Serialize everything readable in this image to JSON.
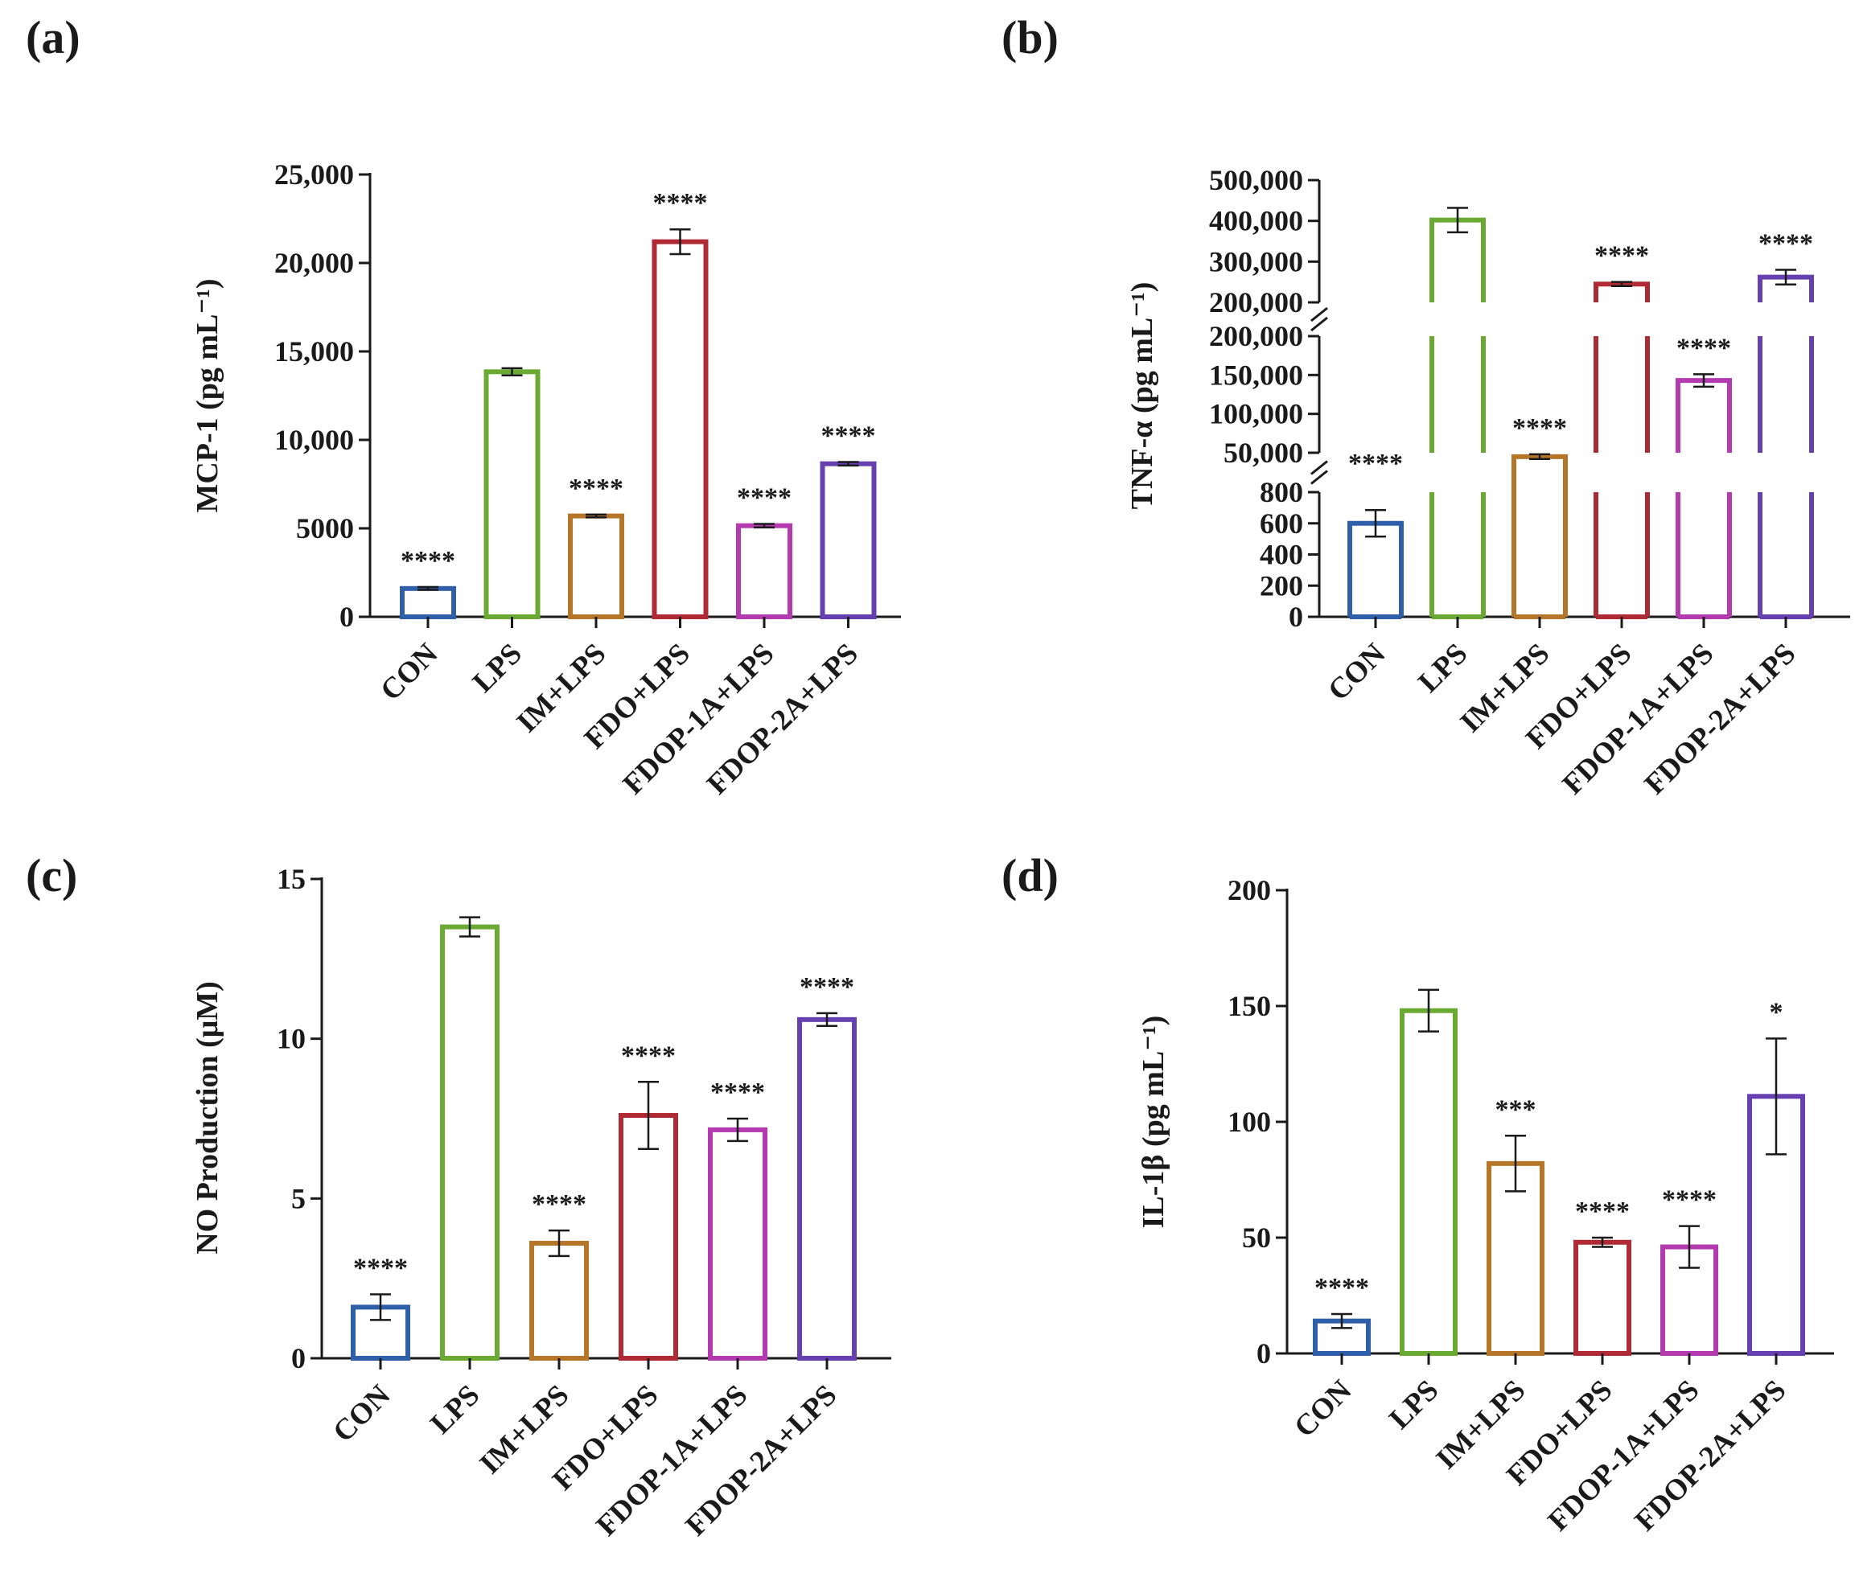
{
  "figure": {
    "panels": [
      {
        "id": "a",
        "label": "(a)"
      },
      {
        "id": "b",
        "label": "(b)"
      },
      {
        "id": "c",
        "label": "(c)"
      },
      {
        "id": "d",
        "label": "(d)"
      }
    ]
  },
  "chart_data": [
    {
      "panel": "(a)",
      "type": "bar",
      "title": "",
      "xlabel": "",
      "ylabel": "MCP-1 (pg mL⁻¹)",
      "ylim": [
        0,
        25000
      ],
      "yticks": [
        0,
        5000,
        10000,
        15000,
        20000,
        25000
      ],
      "ytick_labels": [
        "0",
        "5000",
        "10,000",
        "15,000",
        "20,000",
        "25,000"
      ],
      "categories": [
        "CON",
        "LPS",
        "IM+LPS",
        "FDO+LPS",
        "FDOP-1A+LPS",
        "FDOP-2A+LPS"
      ],
      "values": [
        1600,
        13850,
        5700,
        21200,
        5150,
        8650
      ],
      "errors": [
        80,
        200,
        80,
        700,
        100,
        100
      ],
      "significance": [
        "****",
        "",
        "****",
        "****",
        "****",
        "****"
      ],
      "colors": [
        "#2f5fa8",
        "#6aaa32",
        "#b5762a",
        "#b02a35",
        "#b43ab0",
        "#6640b0"
      ],
      "grid": false,
      "legend": "none"
    },
    {
      "panel": "(b)",
      "type": "bar",
      "title": "",
      "xlabel": "",
      "ylabel": "TNF-α (pg mL⁻¹)",
      "y_axis": "broken into three segments",
      "y_segments": [
        {
          "range": [
            0,
            800
          ],
          "ticks": [
            0,
            200,
            400,
            600,
            800
          ],
          "tick_labels": [
            "0",
            "200",
            "400",
            "600",
            "800"
          ]
        },
        {
          "range": [
            50000,
            200000
          ],
          "ticks": [
            50000,
            100000,
            150000,
            200000
          ],
          "tick_labels": [
            "50,000",
            "100,000",
            "150,000",
            "200,000"
          ]
        },
        {
          "range": [
            200000,
            500000
          ],
          "ticks": [
            200000,
            300000,
            400000,
            500000
          ],
          "tick_labels": [
            "200,000",
            "300,000",
            "400,000",
            "500,000"
          ]
        }
      ],
      "categories": [
        "CON",
        "LPS",
        "IM+LPS",
        "FDO+LPS",
        "FDOP-1A+LPS",
        "FDOP-2A+LPS"
      ],
      "values": [
        600,
        402000,
        45000,
        245000,
        143000,
        262000
      ],
      "errors": [
        85,
        30000,
        3000,
        5000,
        8000,
        18000
      ],
      "significance": [
        "****",
        "",
        "****",
        "****",
        "****",
        "****"
      ],
      "colors": [
        "#2f5fa8",
        "#6aaa32",
        "#b5762a",
        "#b02a35",
        "#b43ab0",
        "#6640b0"
      ],
      "grid": false,
      "legend": "none"
    },
    {
      "panel": "(c)",
      "type": "bar",
      "title": "",
      "xlabel": "",
      "ylabel": "NO Production (μM)",
      "ylim": [
        0,
        15
      ],
      "yticks": [
        0,
        5,
        10,
        15
      ],
      "ytick_labels": [
        "0",
        "5",
        "10",
        "15"
      ],
      "categories": [
        "CON",
        "LPS",
        "IM+LPS",
        "FDO+LPS",
        "FDOP-1A+LPS",
        "FDOP-2A+LPS"
      ],
      "values": [
        1.6,
        13.5,
        3.6,
        7.6,
        7.15,
        10.6
      ],
      "errors": [
        0.4,
        0.3,
        0.4,
        1.05,
        0.35,
        0.2
      ],
      "significance": [
        "****",
        "",
        "****",
        "****",
        "****",
        "****"
      ],
      "colors": [
        "#2f5fa8",
        "#6aaa32",
        "#b5762a",
        "#b02a35",
        "#b43ab0",
        "#6640b0"
      ],
      "grid": false,
      "legend": "none"
    },
    {
      "panel": "(d)",
      "type": "bar",
      "title": "",
      "xlabel": "",
      "ylabel": "IL-1β (pg mL⁻¹)",
      "ylim": [
        0,
        200
      ],
      "yticks": [
        0,
        50,
        100,
        150,
        200
      ],
      "ytick_labels": [
        "0",
        "50",
        "100",
        "150",
        "200"
      ],
      "categories": [
        "CON",
        "LPS",
        "IM+LPS",
        "FDO+LPS",
        "FDOP-1A+LPS",
        "FDOP-2A+LPS"
      ],
      "values": [
        14,
        148,
        82,
        48,
        46,
        111
      ],
      "errors": [
        3,
        9,
        12,
        2,
        9,
        25
      ],
      "significance": [
        "****",
        "",
        "***",
        "****",
        "****",
        "*"
      ],
      "colors": [
        "#2f5fa8",
        "#6aaa32",
        "#b5762a",
        "#b02a35",
        "#b43ab0",
        "#6640b0"
      ],
      "grid": false,
      "legend": "none"
    }
  ]
}
